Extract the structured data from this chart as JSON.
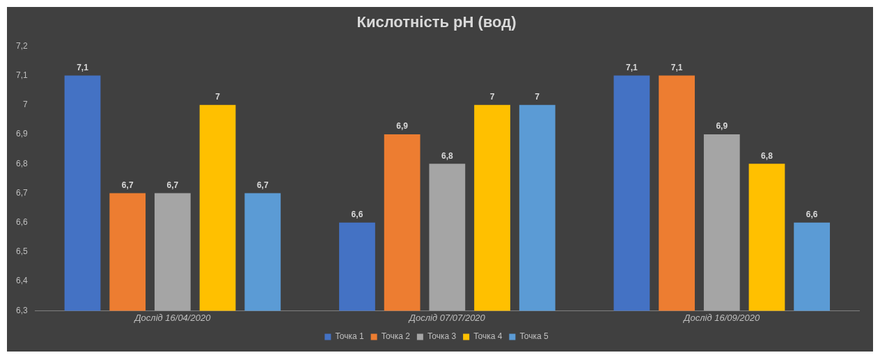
{
  "chart_data": {
    "type": "bar",
    "title": "Кислотність pH (вод)",
    "categories": [
      "Дослід 16/04/2020",
      "Дослід 07/07/2020",
      "Дослід 16/09/2020"
    ],
    "series": [
      {
        "name": "Точка 1",
        "color": "#4472c4",
        "values": [
          7.1,
          6.6,
          7.1
        ],
        "value_labels": [
          "7,1",
          "6,6",
          "7,1"
        ]
      },
      {
        "name": "Точка 2",
        "color": "#ed7d31",
        "values": [
          6.7,
          6.9,
          7.1
        ],
        "value_labels": [
          "6,7",
          "6,9",
          "7,1"
        ]
      },
      {
        "name": "Точка 3",
        "color": "#a5a5a5",
        "values": [
          6.7,
          6.8,
          6.9
        ],
        "value_labels": [
          "6,7",
          "6,8",
          "6,9"
        ]
      },
      {
        "name": "Точка 4",
        "color": "#ffc000",
        "values": [
          7,
          7,
          6.8
        ],
        "value_labels": [
          "7",
          "7",
          "6,8"
        ]
      },
      {
        "name": "Точка 5",
        "color": "#5b9bd5",
        "values": [
          6.7,
          7,
          6.6
        ],
        "value_labels": [
          "6,7",
          "7",
          "6,6"
        ]
      }
    ],
    "ylim": [
      6.3,
      7.2
    ],
    "yticks": [
      {
        "value": 6.3,
        "label": "6,3"
      },
      {
        "value": 6.4,
        "label": "6,4"
      },
      {
        "value": 6.5,
        "label": "6,5"
      },
      {
        "value": 6.6,
        "label": "6,6"
      },
      {
        "value": 6.7,
        "label": "6,7"
      },
      {
        "value": 6.8,
        "label": "6,8"
      },
      {
        "value": 6.9,
        "label": "6,9"
      },
      {
        "value": 7,
        "label": "7"
      },
      {
        "value": 7.1,
        "label": "7,1"
      },
      {
        "value": 7.2,
        "label": "7,2"
      }
    ],
    "grid": false,
    "legend": "bottom"
  }
}
